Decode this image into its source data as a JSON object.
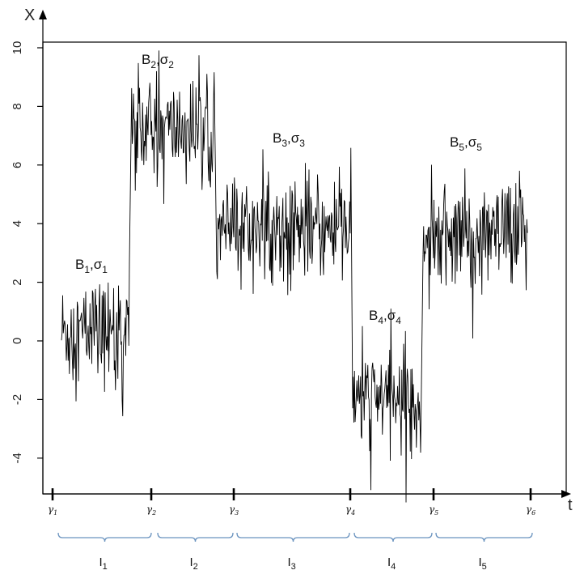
{
  "chart_data": {
    "type": "line",
    "xlabel": "t",
    "ylabel": "X",
    "ylim": [
      -5.2,
      10.2
    ],
    "yticks": [
      10,
      8,
      6,
      4,
      2,
      0,
      -2,
      -4
    ],
    "ytick_labels": [
      "10",
      "8",
      "6",
      "4",
      "2",
      "0",
      "-2",
      "-4"
    ],
    "change_points": [
      {
        "label": "γ",
        "sub": "1"
      },
      {
        "label": "γ",
        "sub": "2"
      },
      {
        "label": "γ",
        "sub": "3"
      },
      {
        "label": "γ",
        "sub": "4"
      },
      {
        "label": "γ",
        "sub": "5"
      },
      {
        "label": "γ",
        "sub": "6"
      }
    ],
    "segments": [
      {
        "mean": 0.3,
        "sd": 0.9,
        "annotation": {
          "b": "B",
          "sub1": "1",
          "sigma": "σ",
          "sub2": "1"
        },
        "interval": {
          "label": "I",
          "sub": "1"
        }
      },
      {
        "mean": 7.2,
        "sd": 0.85,
        "annotation": {
          "b": "B",
          "sub1": "2",
          "sigma": "σ",
          "sub2": "2"
        },
        "interval": {
          "label": "I",
          "sub": "2"
        }
      },
      {
        "mean": 3.8,
        "sd": 0.85,
        "annotation": {
          "b": "B",
          "sub1": "3",
          "sigma": "σ",
          "sub2": "3"
        },
        "interval": {
          "label": "I",
          "sub": "3"
        }
      },
      {
        "mean": -2.0,
        "sd": 0.8,
        "annotation": {
          "b": "B",
          "sub1": "4",
          "sigma": "σ",
          "sub2": "4"
        },
        "interval": {
          "label": "I",
          "sub": "4"
        }
      },
      {
        "mean": 3.5,
        "sd": 0.85,
        "annotation": {
          "b": "B",
          "sub1": "5",
          "sigma": "σ",
          "sub2": "5"
        },
        "interval": {
          "label": "I",
          "sub": "5"
        }
      }
    ],
    "line_color": "#000000",
    "bracket_color": "#6a93bf",
    "grid": false,
    "legend": "none"
  }
}
